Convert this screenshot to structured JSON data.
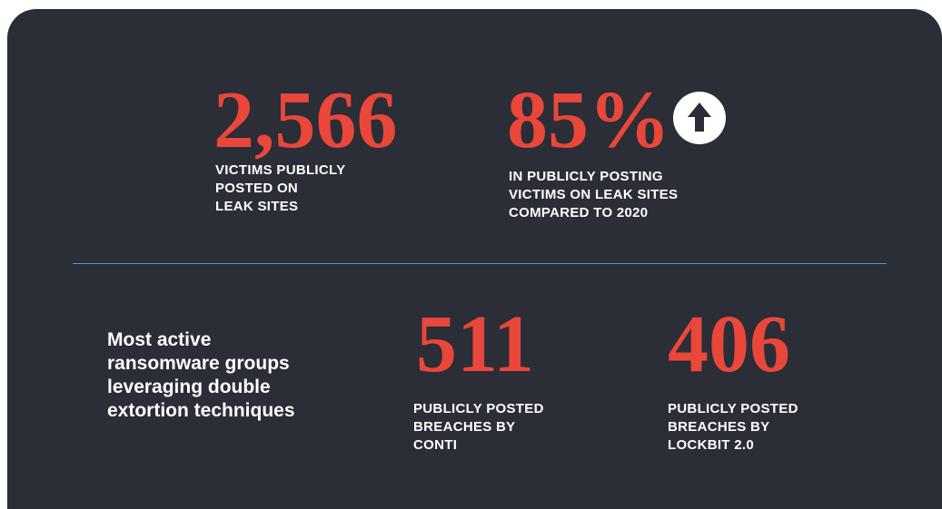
{
  "top": {
    "stats": [
      {
        "value": "2,566",
        "label": [
          "VICTIMS PUBLICLY",
          "POSTED ON",
          "LEAK SITES"
        ]
      },
      {
        "value": "85%",
        "label": [
          "IN PUBLICLY POSTING",
          "VICTIMS ON LEAK SITES",
          "COMPARED TO 2020"
        ]
      }
    ]
  },
  "bottom": {
    "lead": [
      "Most active",
      "ransomware groups",
      "leveraging double",
      "extortion techniques"
    ],
    "stats": [
      {
        "value": "511",
        "label": [
          "PUBLICLY POSTED",
          "BREACHES BY",
          "CONTI"
        ]
      },
      {
        "value": "406",
        "label": [
          "PUBLICLY POSTED",
          "BREACHES BY",
          "LOCKBIT 2.0"
        ]
      }
    ]
  }
}
